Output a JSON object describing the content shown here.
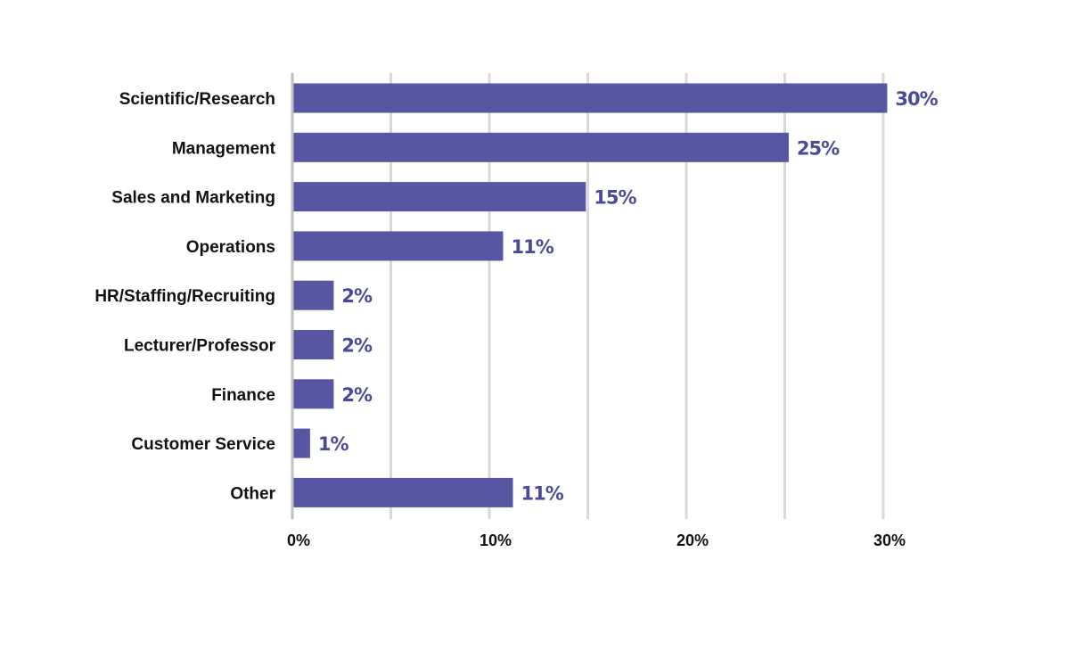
{
  "chart_data": {
    "type": "bar",
    "orientation": "horizontal",
    "categories": [
      "Scientific/Research",
      "Management",
      "Sales and Marketing",
      "Operations",
      "HR/Staffing/Recruiting",
      "Lecturer/Professor",
      "Finance",
      "Customer Service",
      "Other"
    ],
    "values": [
      30.2,
      25.2,
      14.9,
      10.7,
      2.1,
      2.1,
      2.1,
      0.9,
      11.2
    ],
    "value_labels": [
      "30%",
      "25%",
      "15%",
      "11%",
      "2%",
      "2%",
      "2%",
      "1%",
      "11%"
    ],
    "xlim": [
      0,
      30
    ],
    "x_ticks": [
      0,
      10,
      20,
      30
    ],
    "x_tick_labels": [
      "0%",
      "10%",
      "20%",
      "30%"
    ],
    "grid": true,
    "grid_step": 5,
    "title": "",
    "xlabel": "",
    "ylabel": "",
    "colors": {
      "bar": "#5756a3",
      "value_label": "#4b4a9a",
      "grid": "#d9d9d9",
      "axis": "#bfbfbf"
    }
  }
}
